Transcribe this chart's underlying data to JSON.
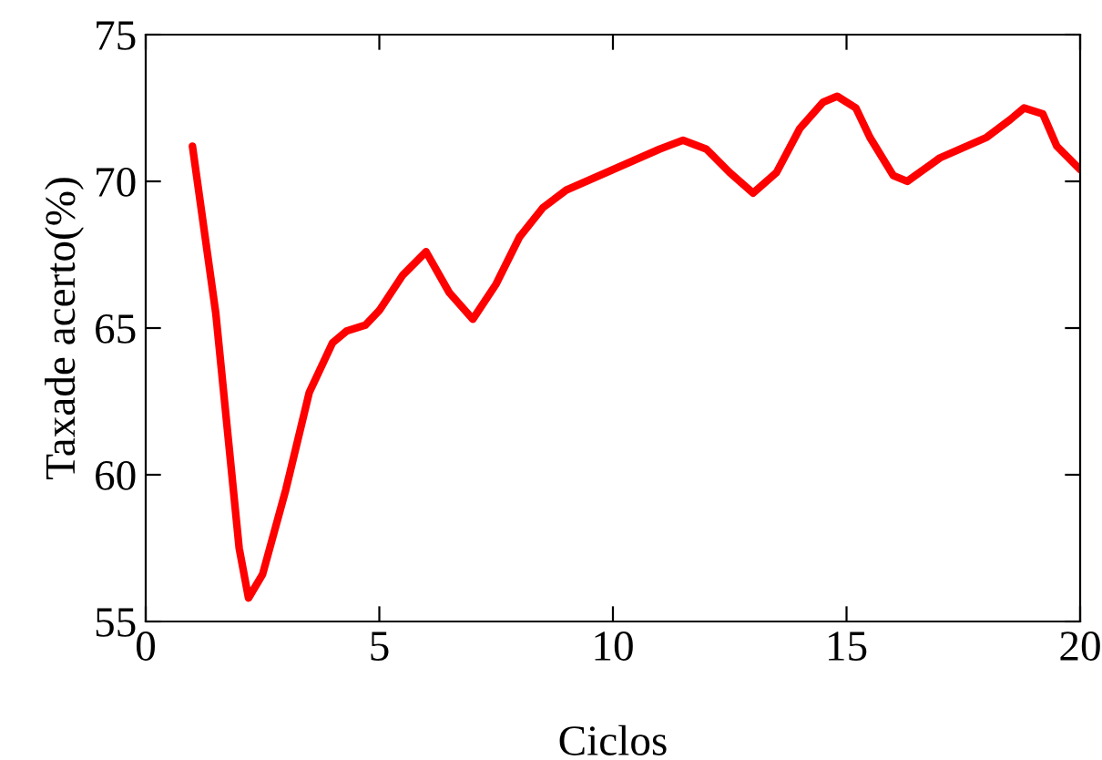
{
  "chart_data": {
    "type": "line",
    "xlabel": "Ciclos",
    "ylabel": "Taxade acerto(%)",
    "x": [
      1,
      1.5,
      2,
      2.2,
      2.5,
      3,
      3.5,
      4,
      4.3,
      4.7,
      5,
      5.5,
      6,
      6.5,
      7,
      7.5,
      8,
      8.5,
      9,
      10,
      11,
      11.5,
      12,
      12.5,
      13,
      13.5,
      14,
      14.5,
      14.8,
      15.2,
      15.5,
      16,
      16.3,
      17,
      18,
      18.5,
      18.8,
      19.2,
      19.5,
      20
    ],
    "series": [
      {
        "color": "#ff0000",
        "values": [
          71.2,
          65.5,
          57.5,
          55.8,
          56.6,
          59.5,
          62.8,
          64.5,
          64.9,
          65.1,
          65.6,
          66.8,
          67.6,
          66.2,
          65.3,
          66.5,
          68.1,
          69.1,
          69.7,
          70.4,
          71.1,
          71.4,
          71.1,
          70.3,
          69.6,
          70.3,
          71.8,
          72.7,
          72.9,
          72.5,
          71.5,
          70.2,
          70.0,
          70.8,
          71.5,
          72.1,
          72.5,
          72.3,
          71.2,
          70.4
        ]
      }
    ],
    "xlim": [
      0,
      20
    ],
    "ylim": [
      55,
      75
    ],
    "xticks": [
      0,
      5,
      10,
      15,
      20
    ],
    "yticks": [
      55,
      60,
      65,
      70,
      75
    ],
    "grid": false,
    "legend": false,
    "marker": "none",
    "line_style": "solid"
  }
}
